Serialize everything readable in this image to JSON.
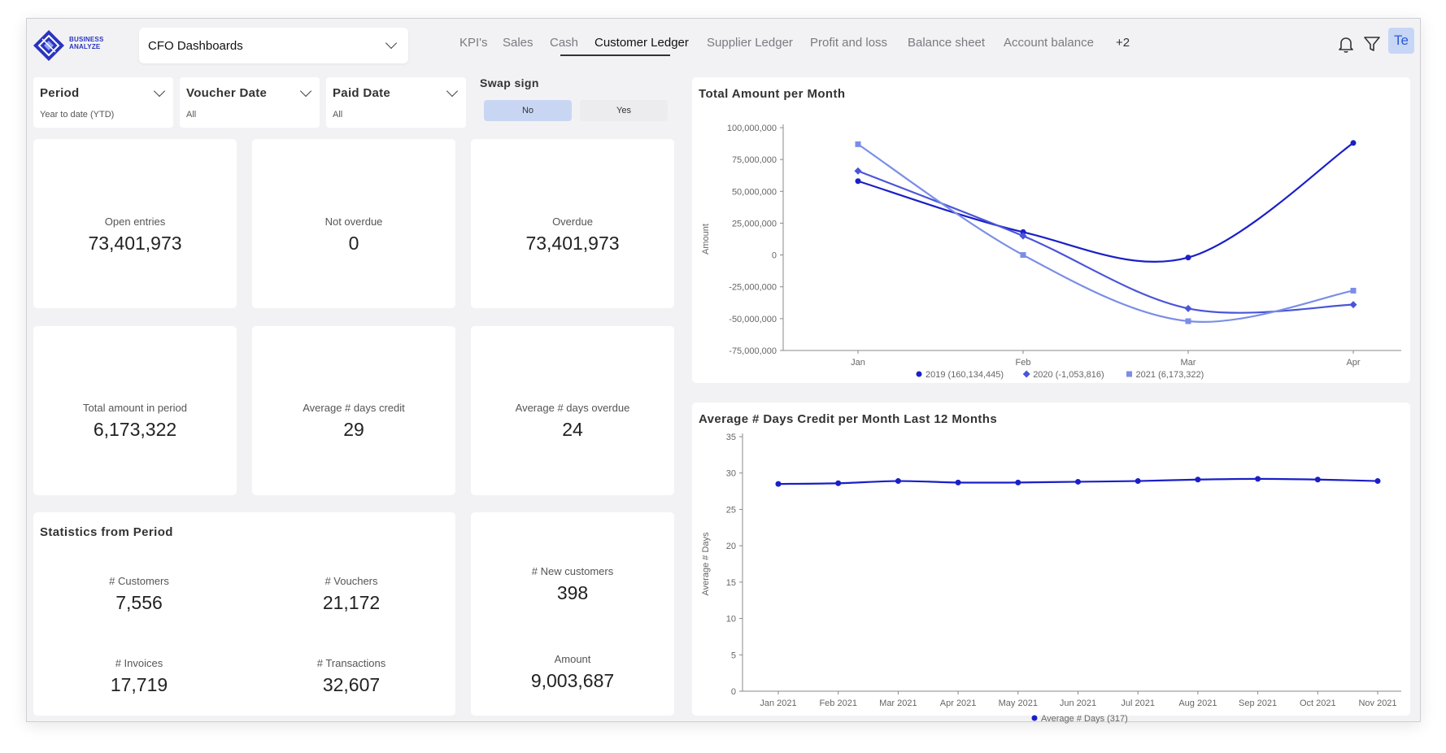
{
  "app": {
    "logo_line1": "BUSINESS",
    "logo_line2": "ANALYZE",
    "dashboard_select": "CFO Dashboards",
    "avatar_initials": "Te"
  },
  "tabs": [
    {
      "label": "KPI's",
      "active": false
    },
    {
      "label": "Sales",
      "active": false
    },
    {
      "label": "Cash",
      "active": false
    },
    {
      "label": "Customer Ledger",
      "active": true
    },
    {
      "label": "Supplier Ledger",
      "active": false
    },
    {
      "label": "Profit and loss",
      "active": false
    },
    {
      "label": "Balance sheet",
      "active": false
    },
    {
      "label": "Account balance",
      "active": false
    },
    {
      "label": "+2",
      "active": false
    }
  ],
  "filters": {
    "period": {
      "title": "Period",
      "value": "Year to date (YTD)"
    },
    "voucher_date": {
      "title": "Voucher Date",
      "value": "All"
    },
    "paid_date": {
      "title": "Paid Date",
      "value": "All"
    },
    "swap_sign": {
      "title": "Swap sign",
      "no": "No",
      "yes": "Yes",
      "selected": "No"
    }
  },
  "kpis": {
    "open_entries": {
      "label": "Open entries",
      "value": "73,401,973"
    },
    "not_overdue": {
      "label": "Not overdue",
      "value": "0"
    },
    "overdue": {
      "label": "Overdue",
      "value": "73,401,973"
    },
    "total_amount": {
      "label": "Total amount in period",
      "value": "6,173,322"
    },
    "avg_days_credit": {
      "label": "Average # days credit",
      "value": "29"
    },
    "avg_days_overdue": {
      "label": "Average # days overdue",
      "value": "24"
    }
  },
  "statistics": {
    "title": "Statistics from Period",
    "customers": {
      "label": "# Customers",
      "value": "7,556"
    },
    "vouchers": {
      "label": "# Vouchers",
      "value": "21,172"
    },
    "invoices": {
      "label": "# Invoices",
      "value": "17,719"
    },
    "transactions": {
      "label": "# Transactions",
      "value": "32,607"
    }
  },
  "new_customers": {
    "label": "# New customers",
    "value": "398",
    "amount_label": "Amount",
    "amount_value": "9,003,687"
  },
  "colors": {
    "series_2019": "#1a1fc7",
    "series_2020": "#4a55d8",
    "series_2021": "#7b8ee6",
    "line_days": "#1a1fc7",
    "swap_selected": "#c9d6f3",
    "swap_unselected": "#ececee",
    "accent": "#2a34c0"
  },
  "chart_data": [
    {
      "type": "line",
      "title": "Total Amount per Month",
      "ylabel": "Amount",
      "xlabel": "",
      "categories": [
        "Jan",
        "Feb",
        "Mar",
        "Apr"
      ],
      "ylim": [
        -75000000,
        100000000
      ],
      "yticks": [
        100000000,
        75000000,
        50000000,
        25000000,
        0,
        -25000000,
        -50000000,
        -75000000
      ],
      "ytick_labels": [
        "100,000,000",
        "75,000,000",
        "50,000,000",
        "25,000,000",
        "0",
        "-25,000,000",
        "-50,000,000",
        "-75,000,000"
      ],
      "series": [
        {
          "name": "2019",
          "legend": "2019 (160,134,445)",
          "marker": "circle",
          "values": [
            58000000,
            18000000,
            -2000000,
            88000000
          ]
        },
        {
          "name": "2020",
          "legend": "2020 (-1,053,816)",
          "marker": "diamond",
          "values": [
            66000000,
            15000000,
            -42000000,
            -39000000
          ]
        },
        {
          "name": "2021",
          "legend": "2021 (6,173,322)",
          "marker": "square",
          "values": [
            87000000,
            0,
            -52000000,
            -28000000
          ]
        }
      ]
    },
    {
      "type": "line",
      "title": "Average # Days Credit per Month Last 12 Months",
      "ylabel": "Average # Days",
      "xlabel": "",
      "categories": [
        "Jan 2021",
        "Feb 2021",
        "Mar 2021",
        "Apr 2021",
        "May 2021",
        "Jun 2021",
        "Jul 2021",
        "Aug 2021",
        "Sep 2021",
        "Oct 2021",
        "Nov 2021"
      ],
      "ylim": [
        0,
        35
      ],
      "yticks": [
        35,
        30,
        25,
        20,
        15,
        10,
        5,
        0
      ],
      "ytick_labels": [
        "35",
        "30",
        "25",
        "20",
        "15",
        "10",
        "5",
        "0"
      ],
      "series": [
        {
          "name": "Average # Days",
          "legend": "Average # Days (317)",
          "marker": "circle",
          "values": [
            28.5,
            28.6,
            28.9,
            28.7,
            28.7,
            28.8,
            28.9,
            29.1,
            29.2,
            29.1,
            28.9
          ]
        }
      ]
    }
  ]
}
